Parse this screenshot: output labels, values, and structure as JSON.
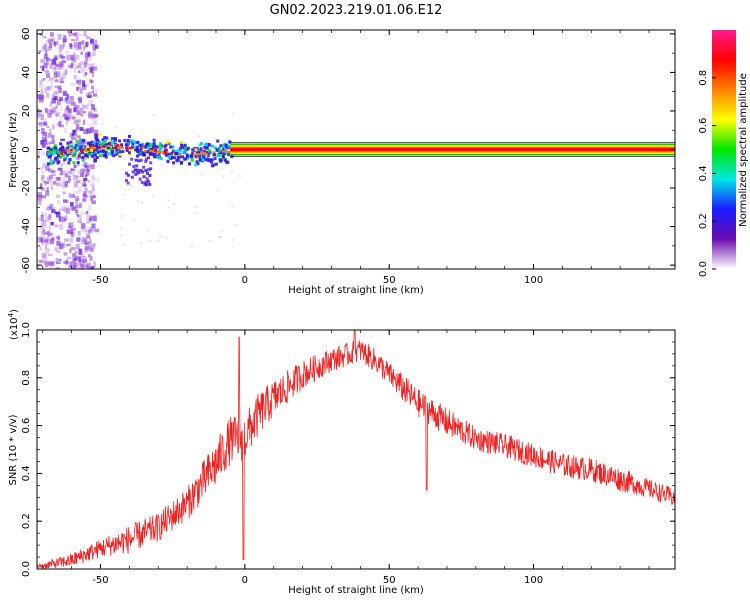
{
  "title": "GN02.2023.219.01.06.E12",
  "chart_data": [
    {
      "type": "heatmap",
      "xlabel": "Height of straight line (km)",
      "ylabel": "Frequency (Hz)",
      "xlim": [
        -72,
        149
      ],
      "ylim": [
        -62,
        62
      ],
      "xticks": [
        -50,
        0,
        50,
        100
      ],
      "yticks": [
        60,
        40,
        20,
        0,
        -20,
        -40,
        -60
      ],
      "grid": false,
      "colorbar": {
        "label": "Normalized spectral amplitude",
        "range": [
          0,
          1
        ],
        "ticks": [
          "0.0",
          "0.2",
          "0.4",
          "0.6",
          "0.8"
        ],
        "colors": [
          "#ffffff",
          "#6a0dad",
          "#1a1aff",
          "#00e6e6",
          "#00e600",
          "#ffff00",
          "#ff8000",
          "#ff0000",
          "#ff1a8c"
        ]
      },
      "line_band": {
        "frequency": 0,
        "x_start": -5,
        "x_end": 149,
        "half_width_hz": 3,
        "colors": [
          "#00cc00",
          "#ffff00",
          "#ff6600",
          "#ff0000"
        ]
      },
      "noisy_segment": {
        "x_start": -72,
        "x_end": -5,
        "frequency_center": 0,
        "spread_hz": 6
      },
      "broadband_noise_region": {
        "x_start": -72,
        "x_end": -52
      }
    },
    {
      "type": "line",
      "xlabel": "Height of straight line (km)",
      "ylabel": "SNR (10 * v/v)",
      "yscale_label": "(x10",
      "yscale_exp": "4",
      "yscale_close": ")",
      "xlim": [
        -72,
        149
      ],
      "ylim": [
        0,
        1.0
      ],
      "xticks": [
        -50,
        0,
        50,
        100
      ],
      "yticks": [
        "0.0",
        "0.2",
        "0.4",
        "0.6",
        "0.8",
        "1.0"
      ],
      "grid": false,
      "series": [
        {
          "color": "#ee2222",
          "envelope": {
            "x": [
              -72,
              -60,
              -50,
              -40,
              -30,
              -20,
              -10,
              -5,
              0,
              5,
              10,
              20,
              30,
              40,
              45,
              50,
              55,
              60,
              70,
              80,
              90,
              100,
              110,
              120,
              130,
              140,
              149
            ],
            "y": [
              0.01,
              0.04,
              0.09,
              0.13,
              0.18,
              0.28,
              0.45,
              0.55,
              0.56,
              0.66,
              0.72,
              0.82,
              0.88,
              0.92,
              0.88,
              0.82,
              0.76,
              0.7,
              0.62,
              0.55,
              0.52,
              0.48,
              0.44,
              0.42,
              0.38,
              0.34,
              0.3
            ],
            "noise": [
              0.01,
              0.03,
              0.04,
              0.06,
              0.06,
              0.07,
              0.1,
              0.1,
              0.1,
              0.09,
              0.08,
              0.06,
              0.05,
              0.05,
              0.05,
              0.05,
              0.06,
              0.06,
              0.06,
              0.05,
              0.05,
              0.05,
              0.05,
              0.05,
              0.05,
              0.04,
              0.04
            ]
          },
          "spikes": [
            {
              "x": -2,
              "y": 0.97
            },
            {
              "x": -0.5,
              "y": 0.04
            },
            {
              "x": 38,
              "y": 1.0
            },
            {
              "x": 63,
              "y": 0.33
            }
          ]
        }
      ]
    }
  ]
}
